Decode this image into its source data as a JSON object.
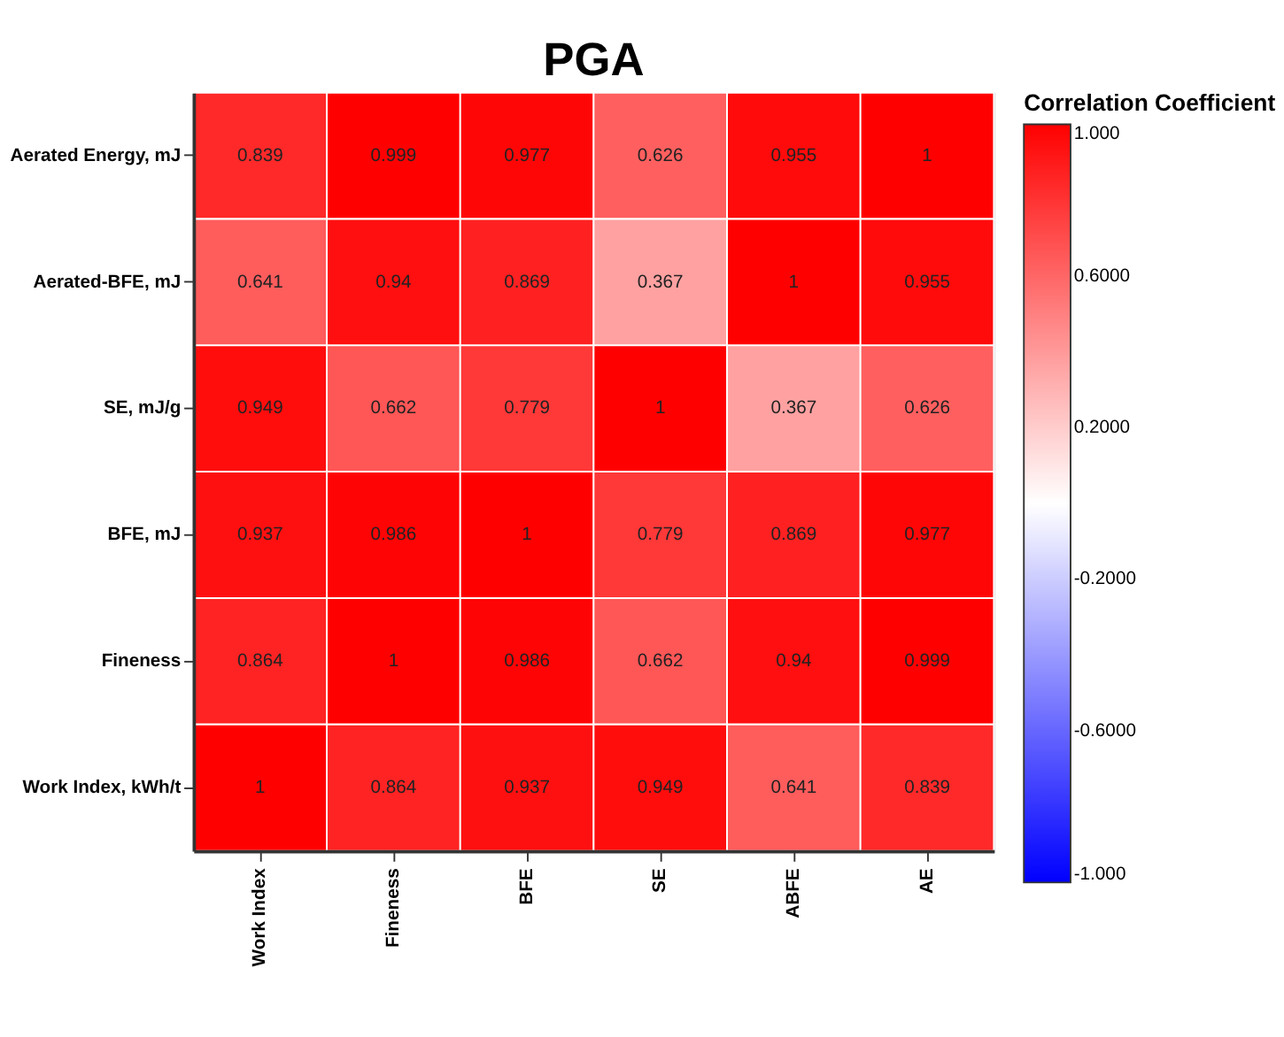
{
  "chart_data": {
    "type": "heatmap",
    "title": "PGA",
    "legend_title": "Correlation Coefficient",
    "categories": [
      "Work Index",
      "Fineness",
      "BFE",
      "SE",
      "ABFE",
      "AE"
    ],
    "y_categories": [
      "Aerated Energy, mJ",
      "Aerated-BFE, mJ",
      "SE, mJ/g",
      "BFE, mJ",
      "Fineness",
      "Work Index, kWh/t"
    ],
    "cells": [
      [
        0.839,
        0.999,
        0.977,
        0.626,
        0.955,
        1
      ],
      [
        0.641,
        0.94,
        0.869,
        0.367,
        1,
        0.955
      ],
      [
        0.949,
        0.662,
        0.779,
        1,
        0.367,
        0.626
      ],
      [
        0.937,
        0.986,
        1,
        0.779,
        0.869,
        0.977
      ],
      [
        0.864,
        1,
        0.986,
        0.662,
        0.94,
        0.999
      ],
      [
        1,
        0.864,
        0.937,
        0.949,
        0.641,
        0.839
      ]
    ],
    "clim": [
      -1,
      1
    ],
    "cticks": [
      {
        "value": 1,
        "label": "1.000"
      },
      {
        "value": 0.6,
        "label": "0.6000"
      },
      {
        "value": 0.2,
        "label": "0.2000"
      },
      {
        "value": -0.2,
        "label": "-0.2000"
      },
      {
        "value": -0.6,
        "label": "-0.6000"
      },
      {
        "value": -1,
        "label": "-1.000"
      }
    ],
    "colors": [
      "#0000ff",
      "#ffffff",
      "#ff0000"
    ],
    "data_labels": true
  }
}
